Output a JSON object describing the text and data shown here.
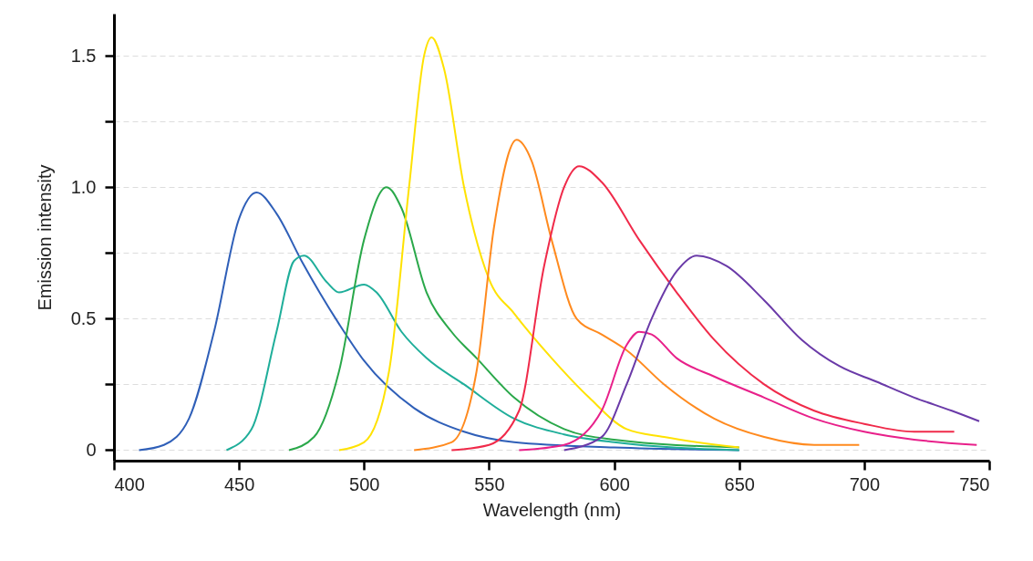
{
  "chart_data": {
    "type": "line",
    "xlabel": "Wavelength (nm)",
    "ylabel": "Emission intensity",
    "xlim": [
      400,
      750
    ],
    "ylim": [
      -0.04,
      1.66
    ],
    "xticks": [
      400,
      450,
      500,
      550,
      600,
      650,
      700,
      750
    ],
    "yticks": [
      0,
      {
        "value": 0.25,
        "label": null
      },
      0.5,
      {
        "value": 0.75,
        "label": null
      },
      {
        "value": 1,
        "label": "1.0"
      },
      {
        "value": 1.25,
        "label": null
      },
      1.5
    ],
    "grid": "y",
    "marker": "none",
    "line_style": "solid",
    "series": [
      {
        "color": "#2f5fb8",
        "x": [
          410,
          420,
          430,
          440,
          450,
          457,
          465,
          475,
          490,
          500,
          520,
          540,
          560,
          600,
          650
        ],
        "values": [
          0,
          0.02,
          0.12,
          0.45,
          0.88,
          0.98,
          0.9,
          0.72,
          0.48,
          0.34,
          0.16,
          0.07,
          0.03,
          0.01,
          0
        ]
      },
      {
        "color": "#1fae9a",
        "x": [
          445,
          455,
          465,
          472,
          476,
          485,
          490,
          500,
          505,
          515,
          525,
          540,
          560,
          580,
          600,
          650
        ],
        "values": [
          0,
          0.08,
          0.45,
          0.72,
          0.74,
          0.64,
          0.6,
          0.63,
          0.6,
          0.45,
          0.35,
          0.25,
          0.12,
          0.06,
          0.03,
          0
        ]
      },
      {
        "color": "#2aa84a",
        "x": [
          470,
          480,
          490,
          500,
          509,
          515,
          525,
          535,
          545,
          560,
          580,
          600,
          650
        ],
        "values": [
          0,
          0.05,
          0.3,
          0.8,
          1.0,
          0.92,
          0.6,
          0.45,
          0.35,
          0.2,
          0.08,
          0.04,
          0.01
        ]
      },
      {
        "color": "#ffe200",
        "x": [
          490,
          500,
          510,
          518,
          524,
          527,
          532,
          540,
          550,
          560,
          575,
          590,
          605,
          620,
          650
        ],
        "values": [
          0,
          0.03,
          0.3,
          1.0,
          1.5,
          1.57,
          1.45,
          1.0,
          0.65,
          0.52,
          0.35,
          0.2,
          0.08,
          0.05,
          0.01
        ]
      },
      {
        "color": "#ff8a1e",
        "x": [
          520,
          535,
          545,
          552,
          561,
          567,
          575,
          585,
          595,
          605,
          620,
          640,
          660,
          680,
          698
        ],
        "values": [
          0,
          0.03,
          0.3,
          0.85,
          1.18,
          1.1,
          0.8,
          0.5,
          0.44,
          0.38,
          0.25,
          0.12,
          0.05,
          0.02,
          0.02
        ]
      },
      {
        "color": "#f02a4a",
        "x": [
          535,
          550,
          562,
          572,
          580,
          586,
          595,
          610,
          625,
          640,
          660,
          680,
          700,
          720,
          736
        ],
        "values": [
          0,
          0.02,
          0.15,
          0.7,
          1.0,
          1.08,
          1.02,
          0.8,
          0.6,
          0.42,
          0.25,
          0.15,
          0.1,
          0.07,
          0.07
        ]
      },
      {
        "color": "#e8208a",
        "x": [
          562,
          580,
          595,
          605,
          610,
          615,
          625,
          640,
          660,
          680,
          700,
          720,
          745
        ],
        "values": [
          0,
          0.02,
          0.15,
          0.4,
          0.45,
          0.44,
          0.35,
          0.28,
          0.2,
          0.12,
          0.07,
          0.04,
          0.02
        ]
      },
      {
        "color": "#6a3aa8",
        "x": [
          580,
          595,
          605,
          615,
          625,
          633,
          645,
          660,
          675,
          690,
          705,
          720,
          735,
          746
        ],
        "values": [
          0,
          0.05,
          0.25,
          0.5,
          0.68,
          0.74,
          0.7,
          0.57,
          0.42,
          0.32,
          0.26,
          0.2,
          0.15,
          0.11
        ]
      }
    ]
  }
}
